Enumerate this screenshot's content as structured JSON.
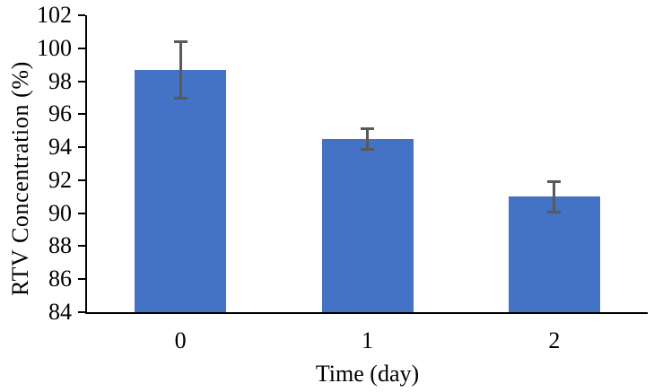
{
  "chart_data": {
    "type": "bar",
    "title": "",
    "xlabel": "Time (day)",
    "ylabel": "RTV Concentration (%)",
    "categories": [
      "0",
      "1",
      "2"
    ],
    "values": [
      98.7,
      94.5,
      91.0
    ],
    "error_bars": [
      1.8,
      0.7,
      1.0
    ],
    "ylim": [
      84,
      102
    ],
    "ytick_step": 2,
    "yticks": [
      102,
      100,
      98,
      96,
      94,
      92,
      90,
      88,
      86,
      84
    ],
    "grid": false,
    "legend": false,
    "colors": {
      "bar_fill": "#4472C4",
      "error_bar": "#595959",
      "axis_line": "#000000",
      "text": "#000000",
      "background": "#FFFFFF"
    }
  }
}
